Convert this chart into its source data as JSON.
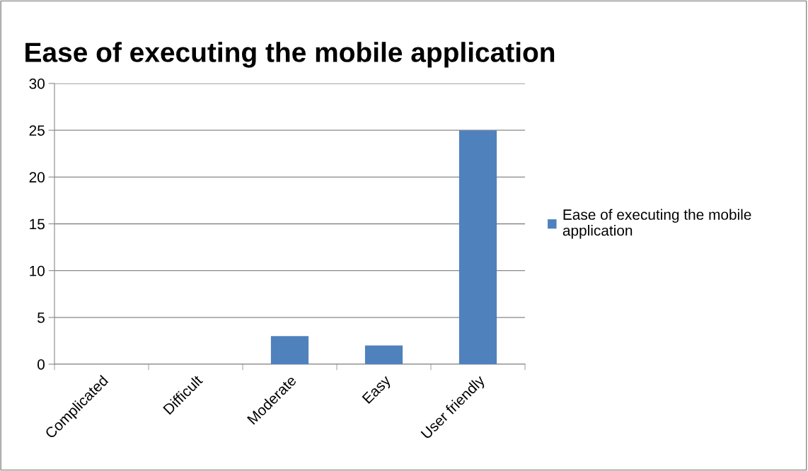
{
  "chart_data": {
    "type": "bar",
    "title": "Ease of executing the mobile application",
    "categories": [
      "Complicated",
      "Difficult",
      "Moderate",
      "Easy",
      "User friendly"
    ],
    "series": [
      {
        "name": "Ease of executing the mobile application",
        "color": "#4f81bd",
        "values": [
          0,
          0,
          3,
          2,
          25
        ]
      }
    ],
    "ylim": [
      0,
      30
    ],
    "yticks": [
      0,
      5,
      10,
      15,
      20,
      25,
      30
    ],
    "grid": "y",
    "legend": "right"
  }
}
